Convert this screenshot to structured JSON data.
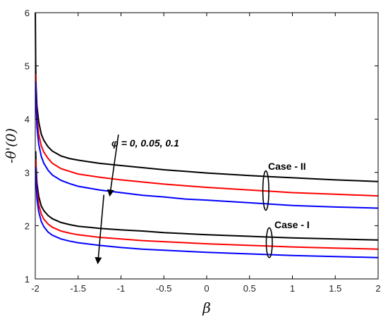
{
  "chart_data": {
    "type": "line",
    "xlabel": "β",
    "ylabel": "-θ'(0)",
    "xlim": [
      -2,
      2
    ],
    "ylim": [
      1,
      6
    ],
    "x_ticks": [
      "-2",
      "-1.5",
      "-1",
      "-0.5",
      "0",
      "0.5",
      "1",
      "1.5",
      "2"
    ],
    "y_ticks": [
      "1",
      "2",
      "3",
      "4",
      "5",
      "6"
    ],
    "grid": false,
    "series": [
      {
        "group": "Case - II",
        "color": "#000000",
        "x": [
          -1.999,
          -1.995,
          -1.99,
          -1.98,
          -1.96,
          -1.93,
          -1.9,
          -1.85,
          -1.8,
          -1.7,
          -1.6,
          -1.5,
          -1.25,
          -1.0,
          -0.75,
          -0.5,
          -0.25,
          0,
          0.5,
          1.0,
          1.5,
          2.0
        ],
        "y": [
          6.0,
          5.0,
          4.6,
          4.25,
          3.95,
          3.72,
          3.6,
          3.48,
          3.4,
          3.31,
          3.26,
          3.23,
          3.17,
          3.13,
          3.09,
          3.05,
          3.02,
          2.99,
          2.94,
          2.9,
          2.86,
          2.83
        ]
      },
      {
        "group": "Case - II",
        "color": "#ff0000",
        "x": [
          -1.995,
          -1.99,
          -1.98,
          -1.96,
          -1.93,
          -1.9,
          -1.85,
          -1.8,
          -1.7,
          -1.6,
          -1.5,
          -1.25,
          -1.0,
          -0.75,
          -0.5,
          -0.25,
          0,
          0.5,
          1.0,
          1.5,
          2.0
        ],
        "y": [
          4.85,
          4.4,
          4.02,
          3.72,
          3.5,
          3.38,
          3.26,
          3.17,
          3.07,
          3.02,
          2.97,
          2.91,
          2.86,
          2.82,
          2.78,
          2.75,
          2.72,
          2.67,
          2.62,
          2.59,
          2.56
        ]
      },
      {
        "group": "Case - II",
        "color": "#0000ff",
        "x": [
          -1.995,
          -1.99,
          -1.98,
          -1.96,
          -1.93,
          -1.9,
          -1.85,
          -1.8,
          -1.7,
          -1.6,
          -1.5,
          -1.25,
          -1.0,
          -0.75,
          -0.5,
          -0.25,
          0,
          0.5,
          1.0,
          1.5,
          2.0
        ],
        "y": [
          4.7,
          4.25,
          3.85,
          3.53,
          3.3,
          3.17,
          3.04,
          2.95,
          2.85,
          2.79,
          2.74,
          2.67,
          2.62,
          2.57,
          2.54,
          2.5,
          2.48,
          2.43,
          2.38,
          2.35,
          2.33
        ]
      },
      {
        "group": "Case - I",
        "color": "#000000",
        "x": [
          -1.995,
          -1.99,
          -1.98,
          -1.96,
          -1.93,
          -1.9,
          -1.85,
          -1.8,
          -1.7,
          -1.6,
          -1.5,
          -1.25,
          -1.0,
          -0.75,
          -0.5,
          -0.25,
          0,
          0.5,
          1.0,
          1.5,
          2.0
        ],
        "y": [
          3.4,
          3.1,
          2.8,
          2.55,
          2.37,
          2.28,
          2.19,
          2.13,
          2.06,
          2.02,
          1.99,
          1.95,
          1.92,
          1.9,
          1.87,
          1.85,
          1.83,
          1.8,
          1.77,
          1.75,
          1.73
        ]
      },
      {
        "group": "Case - I",
        "color": "#ff0000",
        "x": [
          -1.995,
          -1.99,
          -1.98,
          -1.96,
          -1.93,
          -1.9,
          -1.85,
          -1.8,
          -1.7,
          -1.6,
          -1.5,
          -1.25,
          -1.0,
          -0.75,
          -0.5,
          -0.25,
          0,
          0.5,
          1.0,
          1.5,
          2.0
        ],
        "y": [
          3.25,
          2.95,
          2.65,
          2.4,
          2.22,
          2.12,
          2.03,
          1.97,
          1.9,
          1.86,
          1.83,
          1.78,
          1.75,
          1.72,
          1.7,
          1.68,
          1.66,
          1.63,
          1.6,
          1.58,
          1.56
        ]
      },
      {
        "group": "Case - I",
        "color": "#0000ff",
        "x": [
          -1.995,
          -1.99,
          -1.98,
          -1.96,
          -1.93,
          -1.9,
          -1.85,
          -1.8,
          -1.7,
          -1.6,
          -1.5,
          -1.25,
          -1.0,
          -0.75,
          -0.5,
          -0.25,
          0,
          0.5,
          1.0,
          1.5,
          2.0
        ],
        "y": [
          3.1,
          2.8,
          2.5,
          2.26,
          2.08,
          1.98,
          1.88,
          1.82,
          1.75,
          1.71,
          1.68,
          1.63,
          1.59,
          1.56,
          1.54,
          1.52,
          1.5,
          1.47,
          1.44,
          1.42,
          1.4
        ]
      }
    ],
    "annotations": {
      "phi": "φ = 0, 0.05, 0.1",
      "case2": "Case - II",
      "case1": "Case - I"
    },
    "arrows": [
      {
        "from": [
          -1.03,
          3.71
        ],
        "to": [
          -1.13,
          2.57
        ]
      },
      {
        "from": [
          -1.2,
          2.58
        ],
        "to": [
          -1.27,
          1.3
        ]
      }
    ],
    "ellipses": [
      {
        "center": [
          0.69,
          2.66
        ],
        "rx": 0.035,
        "ry": 0.37
      },
      {
        "center": [
          0.73,
          1.68
        ],
        "rx": 0.035,
        "ry": 0.28
      }
    ]
  }
}
